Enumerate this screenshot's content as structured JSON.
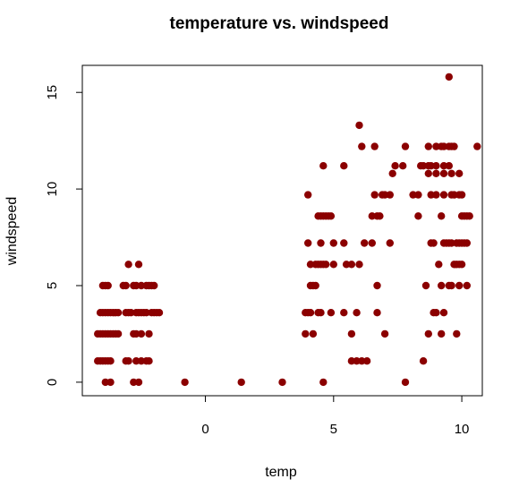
{
  "chart_data": {
    "type": "scatter",
    "title": "temperature vs. windspeed",
    "xlabel": "temp",
    "ylabel": "windspeed",
    "xlim": [
      -4.8,
      10.8
    ],
    "ylim": [
      -0.7,
      16.4
    ],
    "xticks": [
      0,
      5,
      10
    ],
    "yticks": [
      0,
      5,
      10,
      15
    ],
    "point_color": "#8B0000",
    "grid": false,
    "points": [
      {
        "x": -4.2,
        "y": 1.1
      },
      {
        "x": -4.1,
        "y": 1.1
      },
      {
        "x": -4.0,
        "y": 1.1
      },
      {
        "x": -3.9,
        "y": 1.1
      },
      {
        "x": -3.8,
        "y": 1.1
      },
      {
        "x": -3.7,
        "y": 1.1
      },
      {
        "x": -4.2,
        "y": 2.5
      },
      {
        "x": -4.1,
        "y": 2.5
      },
      {
        "x": -4.0,
        "y": 2.5
      },
      {
        "x": -3.9,
        "y": 2.5
      },
      {
        "x": -3.8,
        "y": 2.5
      },
      {
        "x": -3.7,
        "y": 2.5
      },
      {
        "x": -3.6,
        "y": 2.5
      },
      {
        "x": -3.5,
        "y": 2.5
      },
      {
        "x": -3.4,
        "y": 2.5
      },
      {
        "x": -4.1,
        "y": 3.6
      },
      {
        "x": -4.0,
        "y": 3.6
      },
      {
        "x": -3.9,
        "y": 3.6
      },
      {
        "x": -3.8,
        "y": 3.6
      },
      {
        "x": -3.7,
        "y": 3.6
      },
      {
        "x": -3.6,
        "y": 3.6
      },
      {
        "x": -3.5,
        "y": 3.6
      },
      {
        "x": -3.4,
        "y": 3.6
      },
      {
        "x": -4.0,
        "y": 5.0
      },
      {
        "x": -3.9,
        "y": 5.0
      },
      {
        "x": -3.8,
        "y": 5.0
      },
      {
        "x": -3.9,
        "y": 0.0
      },
      {
        "x": -3.7,
        "y": 0.0
      },
      {
        "x": -3.1,
        "y": 1.1
      },
      {
        "x": -3.0,
        "y": 1.1
      },
      {
        "x": -2.7,
        "y": 1.1
      },
      {
        "x": -2.5,
        "y": 1.1
      },
      {
        "x": -2.3,
        "y": 1.1
      },
      {
        "x": -2.2,
        "y": 1.1
      },
      {
        "x": -2.8,
        "y": 2.5
      },
      {
        "x": -2.7,
        "y": 2.5
      },
      {
        "x": -2.5,
        "y": 2.5
      },
      {
        "x": -2.2,
        "y": 2.5
      },
      {
        "x": -3.1,
        "y": 3.6
      },
      {
        "x": -3.0,
        "y": 3.6
      },
      {
        "x": -2.9,
        "y": 3.6
      },
      {
        "x": -2.7,
        "y": 3.6
      },
      {
        "x": -2.6,
        "y": 3.6
      },
      {
        "x": -2.5,
        "y": 3.6
      },
      {
        "x": -2.4,
        "y": 3.6
      },
      {
        "x": -2.3,
        "y": 3.6
      },
      {
        "x": -2.1,
        "y": 3.6
      },
      {
        "x": -2.0,
        "y": 3.6
      },
      {
        "x": -1.9,
        "y": 3.6
      },
      {
        "x": -1.8,
        "y": 3.6
      },
      {
        "x": -3.2,
        "y": 5.0
      },
      {
        "x": -3.1,
        "y": 5.0
      },
      {
        "x": -2.8,
        "y": 5.0
      },
      {
        "x": -2.7,
        "y": 5.0
      },
      {
        "x": -2.5,
        "y": 5.0
      },
      {
        "x": -2.3,
        "y": 5.0
      },
      {
        "x": -2.2,
        "y": 5.0
      },
      {
        "x": -2.1,
        "y": 5.0
      },
      {
        "x": -2.0,
        "y": 5.0
      },
      {
        "x": -3.0,
        "y": 6.1
      },
      {
        "x": -2.6,
        "y": 6.1
      },
      {
        "x": -2.8,
        "y": 0.0
      },
      {
        "x": -2.6,
        "y": 0.0
      },
      {
        "x": -0.8,
        "y": 0.0
      },
      {
        "x": 1.4,
        "y": 0.0
      },
      {
        "x": 3.0,
        "y": 0.0
      },
      {
        "x": 4.6,
        "y": 0.0
      },
      {
        "x": 7.8,
        "y": 0.0
      },
      {
        "x": 3.9,
        "y": 2.5
      },
      {
        "x": 4.2,
        "y": 2.5
      },
      {
        "x": 5.7,
        "y": 2.5
      },
      {
        "x": 7.0,
        "y": 2.5
      },
      {
        "x": 8.7,
        "y": 2.5
      },
      {
        "x": 9.2,
        "y": 2.5
      },
      {
        "x": 9.8,
        "y": 2.5
      },
      {
        "x": 5.7,
        "y": 1.1
      },
      {
        "x": 5.9,
        "y": 1.1
      },
      {
        "x": 6.1,
        "y": 1.1
      },
      {
        "x": 6.3,
        "y": 1.1
      },
      {
        "x": 8.5,
        "y": 1.1
      },
      {
        "x": 3.9,
        "y": 3.6
      },
      {
        "x": 4.0,
        "y": 3.6
      },
      {
        "x": 4.1,
        "y": 3.6
      },
      {
        "x": 4.4,
        "y": 3.6
      },
      {
        "x": 4.5,
        "y": 3.6
      },
      {
        "x": 4.9,
        "y": 3.6
      },
      {
        "x": 5.4,
        "y": 3.6
      },
      {
        "x": 5.9,
        "y": 3.6
      },
      {
        "x": 6.7,
        "y": 3.6
      },
      {
        "x": 8.9,
        "y": 3.6
      },
      {
        "x": 9.0,
        "y": 3.6
      },
      {
        "x": 9.3,
        "y": 3.6
      },
      {
        "x": 4.1,
        "y": 5.0
      },
      {
        "x": 4.2,
        "y": 5.0
      },
      {
        "x": 4.3,
        "y": 5.0
      },
      {
        "x": 6.7,
        "y": 5.0
      },
      {
        "x": 8.6,
        "y": 5.0
      },
      {
        "x": 9.2,
        "y": 5.0
      },
      {
        "x": 9.5,
        "y": 5.0
      },
      {
        "x": 9.6,
        "y": 5.0
      },
      {
        "x": 9.9,
        "y": 5.0
      },
      {
        "x": 10.2,
        "y": 5.0
      },
      {
        "x": 4.1,
        "y": 6.1
      },
      {
        "x": 4.3,
        "y": 6.1
      },
      {
        "x": 4.4,
        "y": 6.1
      },
      {
        "x": 4.5,
        "y": 6.1
      },
      {
        "x": 4.6,
        "y": 6.1
      },
      {
        "x": 4.7,
        "y": 6.1
      },
      {
        "x": 5.0,
        "y": 6.1
      },
      {
        "x": 5.5,
        "y": 6.1
      },
      {
        "x": 5.7,
        "y": 6.1
      },
      {
        "x": 6.0,
        "y": 6.1
      },
      {
        "x": 9.1,
        "y": 6.1
      },
      {
        "x": 9.7,
        "y": 6.1
      },
      {
        "x": 9.8,
        "y": 6.1
      },
      {
        "x": 9.9,
        "y": 6.1
      },
      {
        "x": 10.0,
        "y": 6.1
      },
      {
        "x": 4.0,
        "y": 7.2
      },
      {
        "x": 4.5,
        "y": 7.2
      },
      {
        "x": 5.0,
        "y": 7.2
      },
      {
        "x": 5.4,
        "y": 7.2
      },
      {
        "x": 6.2,
        "y": 7.2
      },
      {
        "x": 6.5,
        "y": 7.2
      },
      {
        "x": 7.2,
        "y": 7.2
      },
      {
        "x": 8.8,
        "y": 7.2
      },
      {
        "x": 8.9,
        "y": 7.2
      },
      {
        "x": 9.3,
        "y": 7.2
      },
      {
        "x": 9.4,
        "y": 7.2
      },
      {
        "x": 9.5,
        "y": 7.2
      },
      {
        "x": 9.6,
        "y": 7.2
      },
      {
        "x": 9.8,
        "y": 7.2
      },
      {
        "x": 9.9,
        "y": 7.2
      },
      {
        "x": 10.0,
        "y": 7.2
      },
      {
        "x": 10.1,
        "y": 7.2
      },
      {
        "x": 10.2,
        "y": 7.2
      },
      {
        "x": 4.4,
        "y": 8.6
      },
      {
        "x": 4.5,
        "y": 8.6
      },
      {
        "x": 4.6,
        "y": 8.6
      },
      {
        "x": 4.7,
        "y": 8.6
      },
      {
        "x": 4.8,
        "y": 8.6
      },
      {
        "x": 4.9,
        "y": 8.6
      },
      {
        "x": 6.5,
        "y": 8.6
      },
      {
        "x": 6.7,
        "y": 8.6
      },
      {
        "x": 6.8,
        "y": 8.6
      },
      {
        "x": 8.3,
        "y": 8.6
      },
      {
        "x": 9.2,
        "y": 8.6
      },
      {
        "x": 10.0,
        "y": 8.6
      },
      {
        "x": 10.1,
        "y": 8.6
      },
      {
        "x": 10.2,
        "y": 8.6
      },
      {
        "x": 10.3,
        "y": 8.6
      },
      {
        "x": 4.0,
        "y": 9.7
      },
      {
        "x": 6.6,
        "y": 9.7
      },
      {
        "x": 6.9,
        "y": 9.7
      },
      {
        "x": 7.0,
        "y": 9.7
      },
      {
        "x": 7.2,
        "y": 9.7
      },
      {
        "x": 8.1,
        "y": 9.7
      },
      {
        "x": 8.3,
        "y": 9.7
      },
      {
        "x": 8.8,
        "y": 9.7
      },
      {
        "x": 9.0,
        "y": 9.7
      },
      {
        "x": 9.3,
        "y": 9.7
      },
      {
        "x": 9.6,
        "y": 9.7
      },
      {
        "x": 9.7,
        "y": 9.7
      },
      {
        "x": 9.9,
        "y": 9.7
      },
      {
        "x": 10.0,
        "y": 9.7
      },
      {
        "x": 7.3,
        "y": 10.8
      },
      {
        "x": 8.7,
        "y": 10.8
      },
      {
        "x": 9.0,
        "y": 10.8
      },
      {
        "x": 9.3,
        "y": 10.8
      },
      {
        "x": 9.6,
        "y": 10.8
      },
      {
        "x": 9.9,
        "y": 10.8
      },
      {
        "x": 4.6,
        "y": 11.2
      },
      {
        "x": 5.4,
        "y": 11.2
      },
      {
        "x": 7.4,
        "y": 11.2
      },
      {
        "x": 7.7,
        "y": 11.2
      },
      {
        "x": 8.4,
        "y": 11.2
      },
      {
        "x": 8.5,
        "y": 11.2
      },
      {
        "x": 8.7,
        "y": 11.2
      },
      {
        "x": 8.8,
        "y": 11.2
      },
      {
        "x": 9.0,
        "y": 11.2
      },
      {
        "x": 9.3,
        "y": 11.2
      },
      {
        "x": 9.5,
        "y": 11.2
      },
      {
        "x": 6.1,
        "y": 12.2
      },
      {
        "x": 6.6,
        "y": 12.2
      },
      {
        "x": 7.8,
        "y": 12.2
      },
      {
        "x": 8.7,
        "y": 12.2
      },
      {
        "x": 9.0,
        "y": 12.2
      },
      {
        "x": 9.2,
        "y": 12.2
      },
      {
        "x": 9.3,
        "y": 12.2
      },
      {
        "x": 9.5,
        "y": 12.2
      },
      {
        "x": 9.6,
        "y": 12.2
      },
      {
        "x": 9.7,
        "y": 12.2
      },
      {
        "x": 10.6,
        "y": 12.2
      },
      {
        "x": 6.0,
        "y": 13.3
      },
      {
        "x": 9.5,
        "y": 15.8
      }
    ]
  }
}
